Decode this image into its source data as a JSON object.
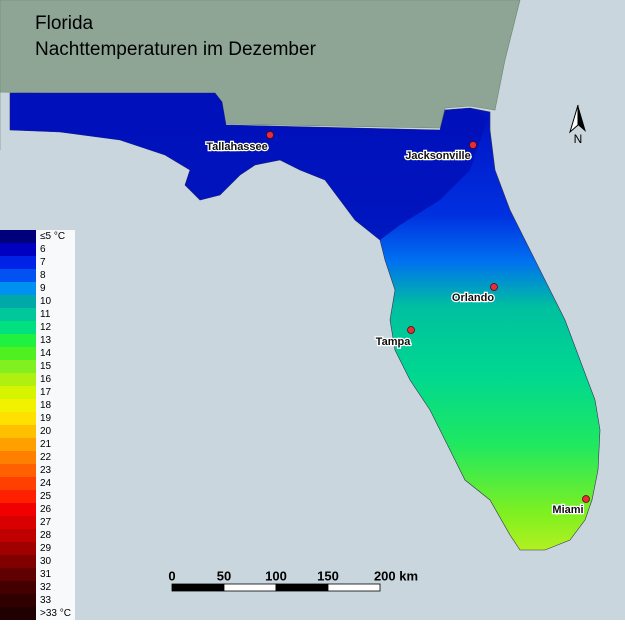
{
  "header": {
    "title_line1": "Florida",
    "title_line2": "Nachttemperaturen im Dezember"
  },
  "legend": {
    "items": [
      {
        "label": "≤5 °C",
        "color": "#00007a"
      },
      {
        "label": "6",
        "color": "#0000c0"
      },
      {
        "label": "7",
        "color": "#0022e6"
      },
      {
        "label": "8",
        "color": "#0052f2"
      },
      {
        "label": "9",
        "color": "#0090f0"
      },
      {
        "label": "10",
        "color": "#00a8a8"
      },
      {
        "label": "11",
        "color": "#00c89c"
      },
      {
        "label": "12",
        "color": "#00e080"
      },
      {
        "label": "13",
        "color": "#20f040"
      },
      {
        "label": "14",
        "color": "#50f020"
      },
      {
        "label": "15",
        "color": "#80f020"
      },
      {
        "label": "16",
        "color": "#b0f010"
      },
      {
        "label": "17",
        "color": "#d4f400"
      },
      {
        "label": "18",
        "color": "#f2f200"
      },
      {
        "label": "19",
        "color": "#ffe000"
      },
      {
        "label": "20",
        "color": "#ffc000"
      },
      {
        "label": "21",
        "color": "#ffa000"
      },
      {
        "label": "22",
        "color": "#ff8000"
      },
      {
        "label": "23",
        "color": "#ff6000"
      },
      {
        "label": "24",
        "color": "#ff4000"
      },
      {
        "label": "25",
        "color": "#ff2000"
      },
      {
        "label": "26",
        "color": "#f00000"
      },
      {
        "label": "27",
        "color": "#d80000"
      },
      {
        "label": "28",
        "color": "#c00000"
      },
      {
        "label": "29",
        "color": "#a00000"
      },
      {
        "label": "30",
        "color": "#800000"
      },
      {
        "label": "31",
        "color": "#600000"
      },
      {
        "label": "32",
        "color": "#440000"
      },
      {
        "label": "33",
        "color": "#300000"
      },
      {
        "label": ">33 °C",
        "color": "#200000"
      }
    ]
  },
  "cities": [
    {
      "name": "Tallahassee"
    },
    {
      "name": "Jacksonville"
    },
    {
      "name": "Orlando"
    },
    {
      "name": "Tampa"
    },
    {
      "name": "Miami"
    }
  ],
  "scale_bar": {
    "labels": [
      "0",
      "50",
      "100",
      "150",
      "200 km"
    ]
  },
  "north_arrow": {
    "label": "N"
  }
}
